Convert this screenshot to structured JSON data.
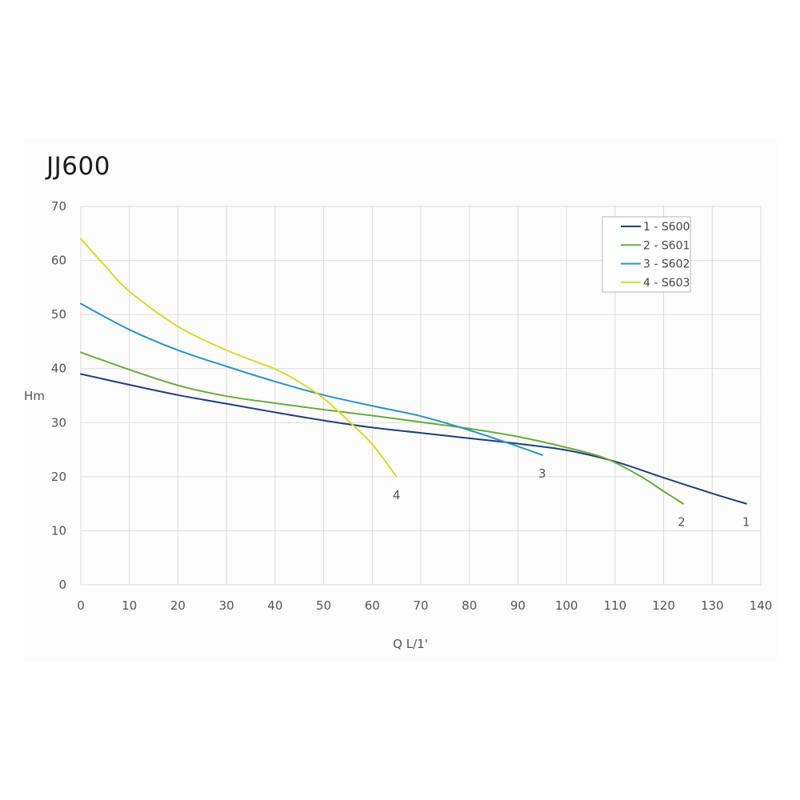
{
  "chart_data": {
    "type": "line",
    "title": "JJ600",
    "xlabel": "Q L/1'",
    "ylabel": "Hm",
    "xlim": [
      0,
      140
    ],
    "ylim": [
      0,
      70
    ],
    "xticks": [
      0,
      10,
      20,
      30,
      40,
      50,
      60,
      70,
      80,
      90,
      100,
      110,
      120,
      130,
      140
    ],
    "yticks": [
      0,
      10,
      20,
      30,
      40,
      50,
      60,
      70
    ],
    "grid": true,
    "legend_position": "top-right",
    "series": [
      {
        "name": "1 - S600",
        "end_label": "1",
        "color": "#1f3f7a",
        "x": [
          0,
          10,
          20,
          30,
          40,
          50,
          60,
          70,
          80,
          90,
          100,
          110,
          120,
          130,
          137
        ],
        "y": [
          39,
          37,
          35.1,
          33.5,
          31.9,
          30.4,
          29.1,
          28.1,
          27.1,
          26.1,
          24.9,
          22.8,
          19.8,
          16.9,
          15
        ]
      },
      {
        "name": "2 - S601",
        "end_label": "2",
        "color": "#6aaa3a",
        "x": [
          0,
          10,
          20,
          30,
          40,
          50,
          60,
          70,
          80,
          90,
          100,
          108,
          115,
          120,
          124
        ],
        "y": [
          43,
          39.8,
          36.9,
          34.9,
          33.6,
          32.4,
          31.3,
          30.1,
          28.9,
          27.4,
          25.4,
          23.4,
          20.2,
          17.3,
          15
        ]
      },
      {
        "name": "3 - S602",
        "end_label": "3",
        "color": "#2a93c4",
        "x": [
          0,
          10,
          20,
          30,
          40,
          50,
          60,
          70,
          80,
          90,
          95
        ],
        "y": [
          52,
          47.2,
          43.4,
          40.4,
          37.6,
          35.1,
          33.1,
          31.2,
          28.6,
          25.6,
          24
        ]
      },
      {
        "name": "4 - S603",
        "end_label": "4",
        "color": "#d4dc2a",
        "x": [
          0,
          5,
          10,
          20,
          30,
          40,
          45,
          50,
          55,
          60,
          65
        ],
        "y": [
          64,
          59,
          54.3,
          47.8,
          43.4,
          39.9,
          37.5,
          34.5,
          30.4,
          26,
          20
        ]
      }
    ]
  }
}
